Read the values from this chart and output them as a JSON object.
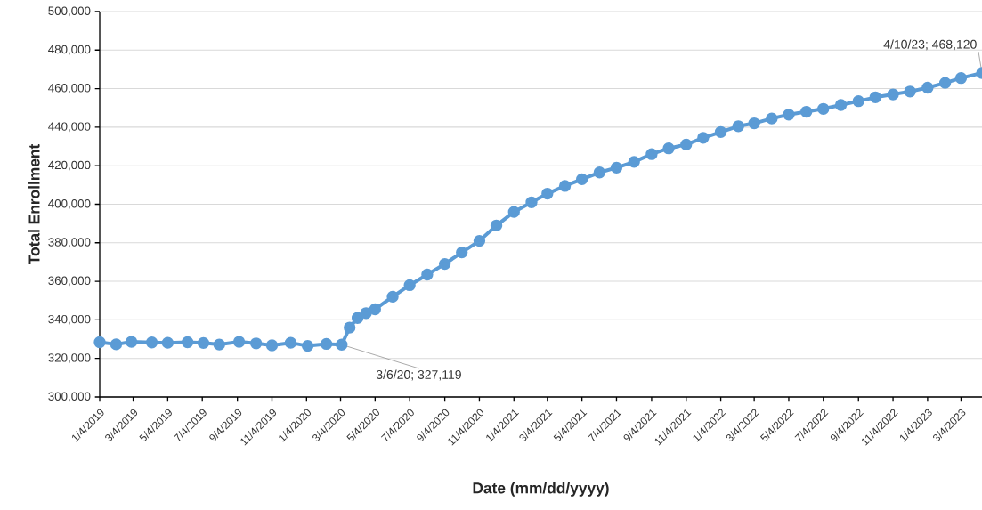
{
  "chart_data": {
    "type": "line",
    "xlabel": "Date (mm/dd/yyyy)",
    "ylabel": "Total Enrollment",
    "x": [
      "2019-01-04",
      "2019-02-02",
      "2019-03-01",
      "2019-04-06",
      "2019-05-04",
      "2019-06-08",
      "2019-07-06",
      "2019-08-03",
      "2019-09-07",
      "2019-10-07",
      "2019-11-04",
      "2019-12-07",
      "2020-01-06",
      "2020-02-08",
      "2020-03-06",
      "2020-03-20",
      "2020-04-03",
      "2020-04-18",
      "2020-05-04",
      "2020-06-04",
      "2020-07-04",
      "2020-08-04",
      "2020-09-04",
      "2020-10-04",
      "2020-11-04",
      "2020-12-04",
      "2021-01-04",
      "2021-02-04",
      "2021-03-04",
      "2021-04-04",
      "2021-05-04",
      "2021-06-04",
      "2021-07-04",
      "2021-08-04",
      "2021-09-04",
      "2021-10-04",
      "2021-11-04",
      "2021-12-04",
      "2022-01-04",
      "2022-02-04",
      "2022-03-04",
      "2022-04-04",
      "2022-05-04",
      "2022-06-04",
      "2022-07-04",
      "2022-08-04",
      "2022-09-04",
      "2022-10-04",
      "2022-11-04",
      "2022-12-04",
      "2023-01-04",
      "2023-02-04",
      "2023-03-04",
      "2023-04-10"
    ],
    "series": [
      {
        "color": "#5b9bd5",
        "values": [
          328400,
          327300,
          328600,
          328300,
          328100,
          328400,
          328000,
          327200,
          328600,
          327800,
          326800,
          328100,
          326500,
          327500,
          327119,
          336000,
          341000,
          343500,
          345500,
          352000,
          358000,
          363500,
          369000,
          375000,
          381000,
          389000,
          396000,
          401000,
          405500,
          409500,
          413000,
          416500,
          419000,
          422000,
          426000,
          429000,
          431000,
          434500,
          437500,
          440500,
          442000,
          444500,
          446500,
          448000,
          449500,
          451500,
          453500,
          455500,
          457000,
          458500,
          460500,
          463000,
          465500,
          468120
        ]
      }
    ],
    "xlim": [
      "2019-01-04",
      "2023-04-10"
    ],
    "xticks": [
      {
        "value": "2019-01-04",
        "label": "1/4/2019"
      },
      {
        "value": "2019-03-04",
        "label": "3/4/2019"
      },
      {
        "value": "2019-05-04",
        "label": "5/4/2019"
      },
      {
        "value": "2019-07-04",
        "label": "7/4/2019"
      },
      {
        "value": "2019-09-04",
        "label": "9/4/2019"
      },
      {
        "value": "2019-11-04",
        "label": "11/4/2019"
      },
      {
        "value": "2020-01-04",
        "label": "1/4/2020"
      },
      {
        "value": "2020-03-04",
        "label": "3/4/2020"
      },
      {
        "value": "2020-05-04",
        "label": "5/4/2020"
      },
      {
        "value": "2020-07-04",
        "label": "7/4/2020"
      },
      {
        "value": "2020-09-04",
        "label": "9/4/2020"
      },
      {
        "value": "2020-11-04",
        "label": "11/4/2020"
      },
      {
        "value": "2021-01-04",
        "label": "1/4/2021"
      },
      {
        "value": "2021-03-04",
        "label": "3/4/2021"
      },
      {
        "value": "2021-05-04",
        "label": "5/4/2021"
      },
      {
        "value": "2021-07-04",
        "label": "7/4/2021"
      },
      {
        "value": "2021-09-04",
        "label": "9/4/2021"
      },
      {
        "value": "2021-11-04",
        "label": "11/4/2021"
      },
      {
        "value": "2022-01-04",
        "label": "1/4/2022"
      },
      {
        "value": "2022-03-04",
        "label": "3/4/2022"
      },
      {
        "value": "2022-05-04",
        "label": "5/4/2022"
      },
      {
        "value": "2022-07-04",
        "label": "7/4/2022"
      },
      {
        "value": "2022-09-04",
        "label": "9/4/2022"
      },
      {
        "value": "2022-11-04",
        "label": "11/4/2022"
      },
      {
        "value": "2023-01-04",
        "label": "1/4/2023"
      },
      {
        "value": "2023-03-04",
        "label": "3/4/2023"
      }
    ],
    "ylim": [
      300000,
      500000
    ],
    "yticks": [
      {
        "value": 300000,
        "label": "300,000"
      },
      {
        "value": 320000,
        "label": "320,000"
      },
      {
        "value": 340000,
        "label": "340,000"
      },
      {
        "value": 360000,
        "label": "360,000"
      },
      {
        "value": 380000,
        "label": "380,000"
      },
      {
        "value": 400000,
        "label": "400,000"
      },
      {
        "value": 420000,
        "label": "420,000"
      },
      {
        "value": 440000,
        "label": "440,000"
      },
      {
        "value": 460000,
        "label": "460,000"
      },
      {
        "value": 480000,
        "label": "480,000"
      },
      {
        "value": 500000,
        "label": "500,000"
      }
    ],
    "grid": "y",
    "marker": "circle",
    "line_style": "solid",
    "annotations": [
      {
        "text": "3/6/20; 327,119",
        "x": "2020-03-06",
        "y": 327119
      },
      {
        "text": "4/10/23; 468,120",
        "x": "2023-04-10",
        "y": 468120
      }
    ]
  }
}
